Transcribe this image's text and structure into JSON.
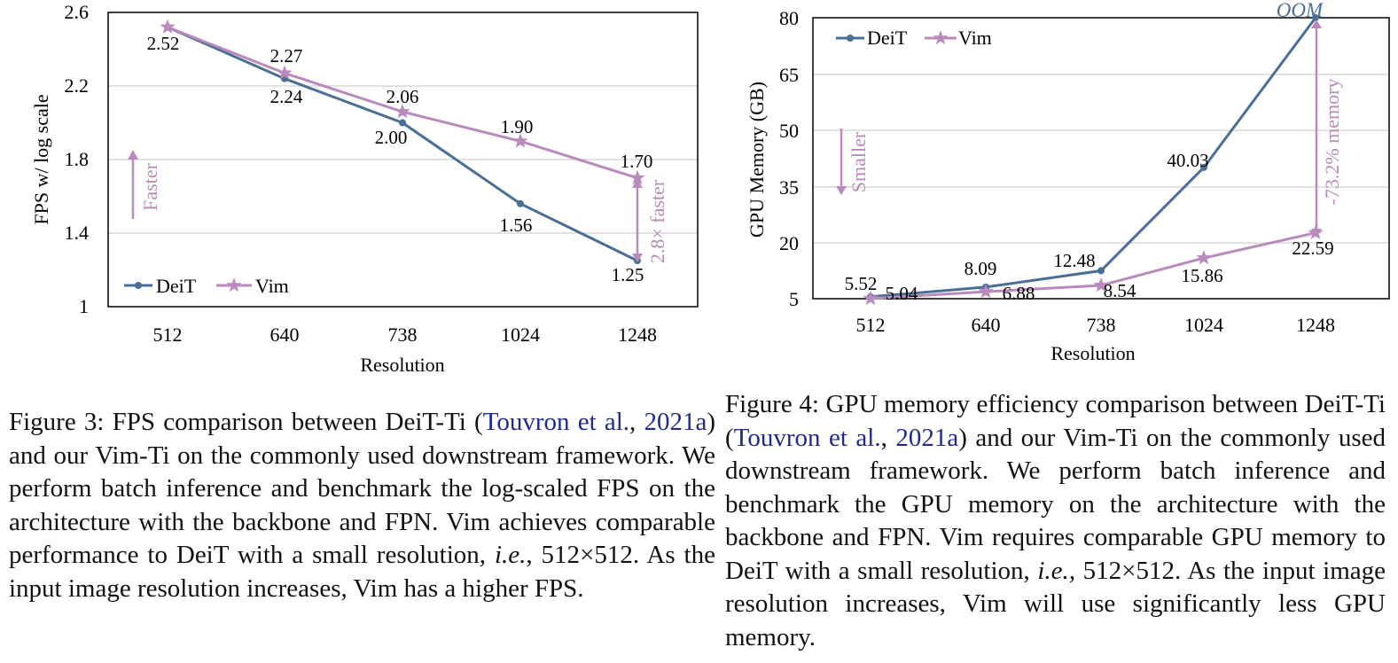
{
  "colors": {
    "deit": "#4a6f97",
    "vim": "#b98abb",
    "axis": "#000000",
    "grid": "#d9d9d9",
    "cite": "#1f2a8c"
  },
  "chart_data": [
    {
      "type": "line",
      "title": "",
      "xlabel": "Resolution",
      "ylabel": "FPS w/ log scale",
      "categories": [
        "512",
        "640",
        "738",
        "1024",
        "1248"
      ],
      "yticks": [
        "1",
        "1.4",
        "1.8",
        "2.2",
        "2.6"
      ],
      "ylim": [
        1,
        2.6
      ],
      "series": [
        {
          "name": "DeiT",
          "values": [
            2.52,
            2.24,
            2.0,
            1.56,
            1.25
          ],
          "labels": [
            "2.52",
            "2.24",
            "2.00",
            "1.56",
            "1.25"
          ]
        },
        {
          "name": "Vim",
          "values": [
            2.52,
            2.27,
            2.06,
            1.9,
            1.7
          ],
          "labels": [
            "",
            "2.27",
            "2.06",
            "1.90",
            "1.70"
          ]
        }
      ],
      "annotations": {
        "direction": "Faster",
        "gain": "2.8× faster"
      }
    },
    {
      "type": "line",
      "title": "",
      "xlabel": "Resolution",
      "ylabel": "GPU Memory (GB)",
      "categories": [
        "512",
        "640",
        "738",
        "1024",
        "1248"
      ],
      "yticks": [
        "5",
        "20",
        "35",
        "50",
        "65",
        "80"
      ],
      "ylim": [
        5,
        80
      ],
      "series": [
        {
          "name": "DeiT",
          "values": [
            5.52,
            8.09,
            12.48,
            40.03,
            80
          ],
          "labels": [
            "5.52",
            "8.09",
            "12.48",
            "40.03",
            "OOM"
          ]
        },
        {
          "name": "Vim",
          "values": [
            5.04,
            6.88,
            8.54,
            15.86,
            22.59
          ],
          "labels": [
            "5.04",
            "6.88",
            "8.54",
            "15.86",
            "22.59"
          ]
        }
      ],
      "annotations": {
        "direction": "Smaller",
        "gain": "-73.2% memory"
      }
    }
  ],
  "captions": {
    "fig3": {
      "label": "Figure 3: FPS comparison between DeiT-Ti (",
      "cite_author": "Touvron et al.",
      "sep": ", ",
      "cite_year": "2021a",
      "body1": ") and our Vim-Ti on the commonly used downstream framework. We perform batch inference and benchmark the log-scaled FPS on the architecture with the backbone and FPN. Vim achieves comparable performance to DeiT with a small resolution, ",
      "ie": "i.e.",
      "body2": ", 512×512. As the input image resolution increases, Vim has a higher FPS."
    },
    "fig4": {
      "label": "Figure 4: GPU memory efficiency comparison between DeiT-Ti (",
      "cite_author": "Touvron et al.",
      "sep": ", ",
      "cite_year": "2021a",
      "body1": ") and our Vim-Ti on the commonly used downstream framework. We perform batch inference and benchmark the GPU memory on the architecture with the backbone and FPN. Vim requires comparable GPU memory to DeiT with a small resolution, ",
      "ie": "i.e.",
      "body2": ", 512×512. As the input image resolution increases, Vim will use significantly less GPU memory."
    }
  }
}
